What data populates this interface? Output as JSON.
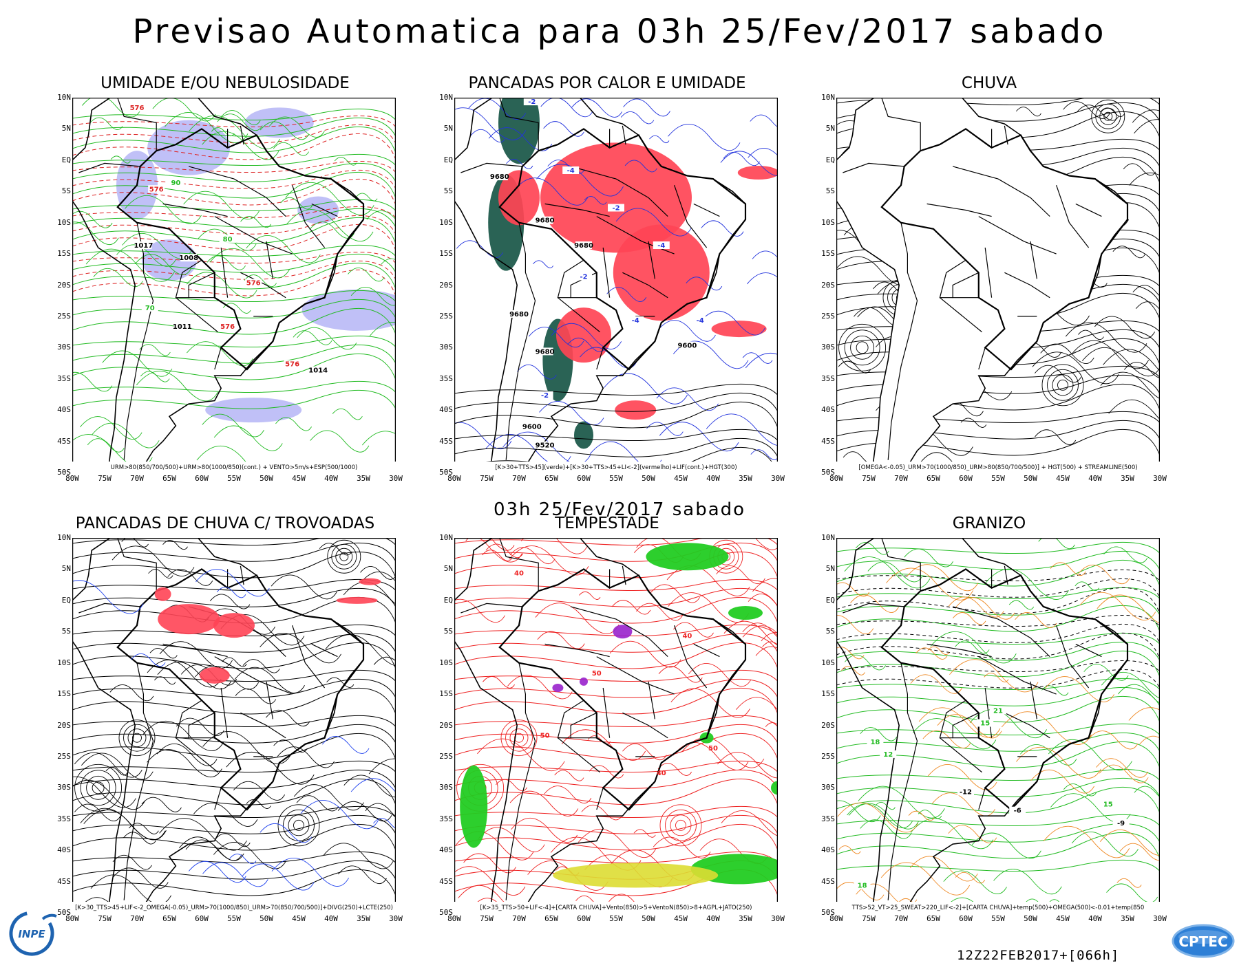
{
  "header": {
    "title": "Previsao Automatica  para 03h 25/Fev/2017 sabado",
    "mid_title": "03h 25/Fev/2017 sabado"
  },
  "axes": {
    "lat_labels": [
      "10N",
      "5N",
      "EQ",
      "5S",
      "10S",
      "15S",
      "20S",
      "25S",
      "30S",
      "35S",
      "40S",
      "45S",
      "50S"
    ],
    "lon_labels": [
      "80W",
      "75W",
      "70W",
      "65W",
      "60W",
      "55W",
      "50W",
      "45W",
      "40W",
      "35W",
      "30W"
    ]
  },
  "panels": [
    {
      "id": "umidade",
      "title": "UMIDADE E/OU NEBULOSIDADE",
      "caption": "URM>80(850/700/500)+URM>80(1000/850)(cont.) + VENTO>5m/s+ESP(500/1000)",
      "colors": {
        "fill": "#8c8cf0",
        "contour": "#22bb22",
        "dashed": "#dd2222"
      },
      "labels": [
        "576",
        "576",
        "1011",
        "1008",
        "1014",
        "90",
        "80",
        "70",
        "1017"
      ]
    },
    {
      "id": "pancadas-calor",
      "title": "PANCADAS POR CALOR E UMIDADE",
      "caption": "[K>30+TTS>45](verde)+[K>30+TTS>45+LI<-2](vermelho)+LIF(cont.)+HGT(300)",
      "colors": {
        "fill_red": "#ff4455",
        "fill_green": "#1f5b4c",
        "contour": "#2233dd"
      },
      "labels": [
        "-2",
        "-4",
        "9680",
        "9600",
        "9520"
      ]
    },
    {
      "id": "chuva",
      "title": "CHUVA",
      "caption": "[OMEGA<-0.05)_URM>70(1000/850)_URM>80(850/700/500)] + HGT(500) + STREAMLINE(500)",
      "colors": {
        "stream": "#000000"
      },
      "labels": []
    },
    {
      "id": "pancadas-trovoadas",
      "title": "PANCADAS DE CHUVA C/ TROVOADAS",
      "caption": "[K>30_TTS>45+LIF<-2_OMEGA(-0.05)_URM>70(1000/850)_URM>70(850/700/500)]+DIVG(250)+LCTE(250)",
      "colors": {
        "fill_red": "#ff4455",
        "contour": "#2244ee"
      },
      "labels": []
    },
    {
      "id": "tempestade",
      "title": "TEMPESTADE",
      "caption": "[K>35_TTS>50+LIF<-4]+[CARTA CHUVA]+Vento(850)>5+VentoN(850)>8+AGPL+JATO(250)",
      "colors": {
        "stream": "#ee2222",
        "green": "#22cc22",
        "yellow": "#dddd33",
        "purple": "#9922cc"
      },
      "labels": [
        "40",
        "50"
      ]
    },
    {
      "id": "granizo",
      "title": "GRANIZO",
      "caption": "TTS>52_VT>25_SWEAT>220_LIF<-2]+[CARTA CHUVA]+temp(500)+OMEGA(500)<-0.01+temp(850",
      "colors": {
        "green": "#22bb22",
        "orange": "#ee8822",
        "dashed": "#000000"
      },
      "labels": [
        "-6",
        "-9",
        "-12",
        "15",
        "18",
        "21",
        "12"
      ]
    }
  ],
  "footer": {
    "run_id": "12Z22FEB2017+[066h]",
    "logo_left": "INPE",
    "logo_right": "CPTEC"
  }
}
